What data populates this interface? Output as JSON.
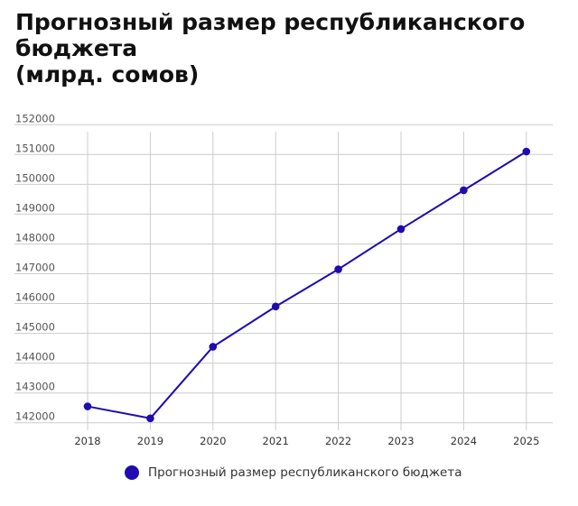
{
  "chart_data": {
    "type": "line",
    "title": "Прогнозный размер республиканского бюджета",
    "subtitle": "(млрд. сомов)",
    "x": [
      "2018",
      "2019",
      "2020",
      "2021",
      "2022",
      "2023",
      "2024",
      "2025"
    ],
    "series": [
      {
        "name": "Прогнозный размер республиканского бюджета",
        "color": "#1f0bb0",
        "values": [
          142550,
          142150,
          144550,
          145900,
          147150,
          148500,
          149800,
          151100
        ]
      }
    ],
    "y_ticks": [
      142000,
      143000,
      144000,
      145000,
      146000,
      147000,
      148000,
      149000,
      150000,
      151000,
      152000
    ],
    "ylim": [
      141750,
      152250
    ],
    "grid": true,
    "legend": "bottom"
  }
}
